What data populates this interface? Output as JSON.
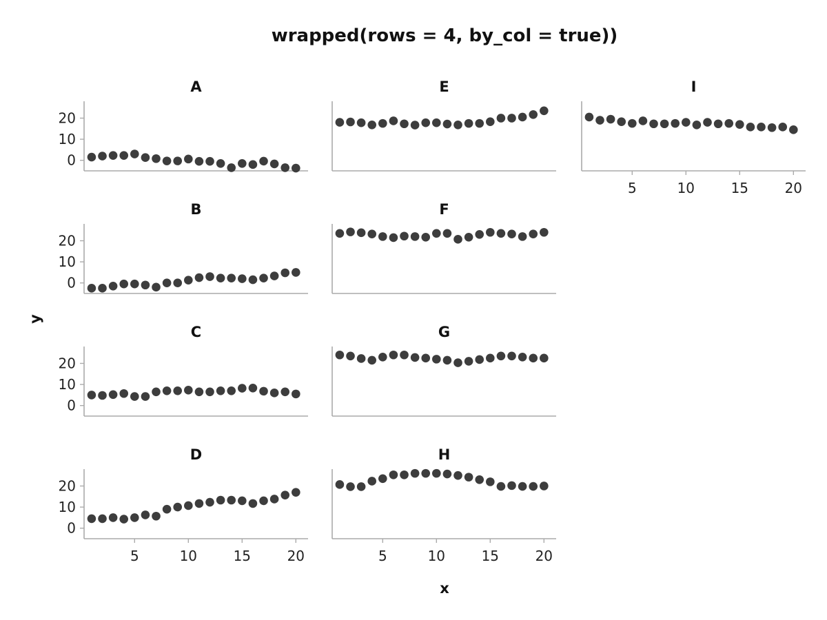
{
  "chart_data": {
    "type": "scatter",
    "title": "wrapped(rows = 4, by_col = true))",
    "xlabel": "x",
    "ylabel": "y",
    "xlim": [
      0.3,
      21
    ],
    "ylim": [
      -5,
      28
    ],
    "x_ticks": [
      5,
      10,
      15,
      20
    ],
    "y_ticks": [
      0,
      10,
      20
    ],
    "grid": false,
    "point_color": "#3d3d3d",
    "x": [
      1,
      2,
      3,
      4,
      5,
      6,
      7,
      8,
      9,
      10,
      11,
      12,
      13,
      14,
      15,
      16,
      17,
      18,
      19,
      20
    ],
    "facets": [
      {
        "label": "A",
        "values": [
          1.5,
          2.0,
          2.3,
          2.3,
          3.0,
          1.3,
          0.8,
          -0.3,
          -0.3,
          0.6,
          -0.5,
          -0.5,
          -1.5,
          -3.5,
          -1.5,
          -2.0,
          -0.4,
          -1.7,
          -3.5,
          -3.7
        ]
      },
      {
        "label": "B",
        "values": [
          -2.5,
          -2.5,
          -1.5,
          -0.5,
          -0.5,
          -1.0,
          -2.0,
          0.0,
          0.0,
          1.3,
          2.5,
          3.0,
          2.3,
          2.3,
          2.0,
          1.5,
          2.3,
          3.3,
          4.8,
          5.0
        ]
      },
      {
        "label": "C",
        "values": [
          5.0,
          4.8,
          5.2,
          5.7,
          4.3,
          4.3,
          6.5,
          7.0,
          7.0,
          7.3,
          6.5,
          6.5,
          7.0,
          7.0,
          8.2,
          8.3,
          6.8,
          6.0,
          6.5,
          5.5
        ]
      },
      {
        "label": "D",
        "values": [
          4.5,
          4.5,
          5.0,
          4.3,
          5.0,
          6.3,
          5.7,
          9.0,
          10.0,
          10.7,
          11.7,
          12.3,
          13.3,
          13.3,
          13.0,
          11.7,
          13.0,
          13.8,
          15.7,
          17.0
        ]
      },
      {
        "label": "E",
        "values": [
          18.0,
          18.2,
          17.8,
          16.8,
          17.5,
          18.7,
          17.3,
          16.7,
          17.8,
          17.8,
          17.2,
          16.8,
          17.5,
          17.5,
          18.3,
          20.0,
          20.0,
          20.5,
          21.7,
          23.5
        ]
      },
      {
        "label": "F",
        "values": [
          23.5,
          24.2,
          23.8,
          23.2,
          22.0,
          21.5,
          22.2,
          22.0,
          21.7,
          23.5,
          23.5,
          20.7,
          21.7,
          23.0,
          24.0,
          23.5,
          23.2,
          22.0,
          23.2,
          24.0
        ]
      },
      {
        "label": "G",
        "values": [
          24.0,
          23.5,
          22.3,
          21.5,
          23.0,
          24.0,
          24.0,
          22.8,
          22.5,
          22.0,
          21.5,
          20.3,
          21.0,
          21.8,
          22.5,
          23.5,
          23.5,
          23.0,
          22.5,
          22.5
        ]
      },
      {
        "label": "H",
        "values": [
          20.7,
          19.7,
          19.7,
          22.3,
          23.5,
          25.3,
          25.3,
          26.0,
          26.0,
          26.0,
          25.7,
          25.0,
          24.2,
          23.0,
          22.0,
          19.8,
          20.2,
          19.8,
          19.8,
          20.0
        ]
      },
      {
        "label": "I",
        "values": [
          20.5,
          19.0,
          19.5,
          18.3,
          17.5,
          18.7,
          17.3,
          17.3,
          17.5,
          18.0,
          16.8,
          18.0,
          17.3,
          17.5,
          17.0,
          15.8,
          15.8,
          15.5,
          15.8,
          14.5
        ]
      }
    ]
  }
}
